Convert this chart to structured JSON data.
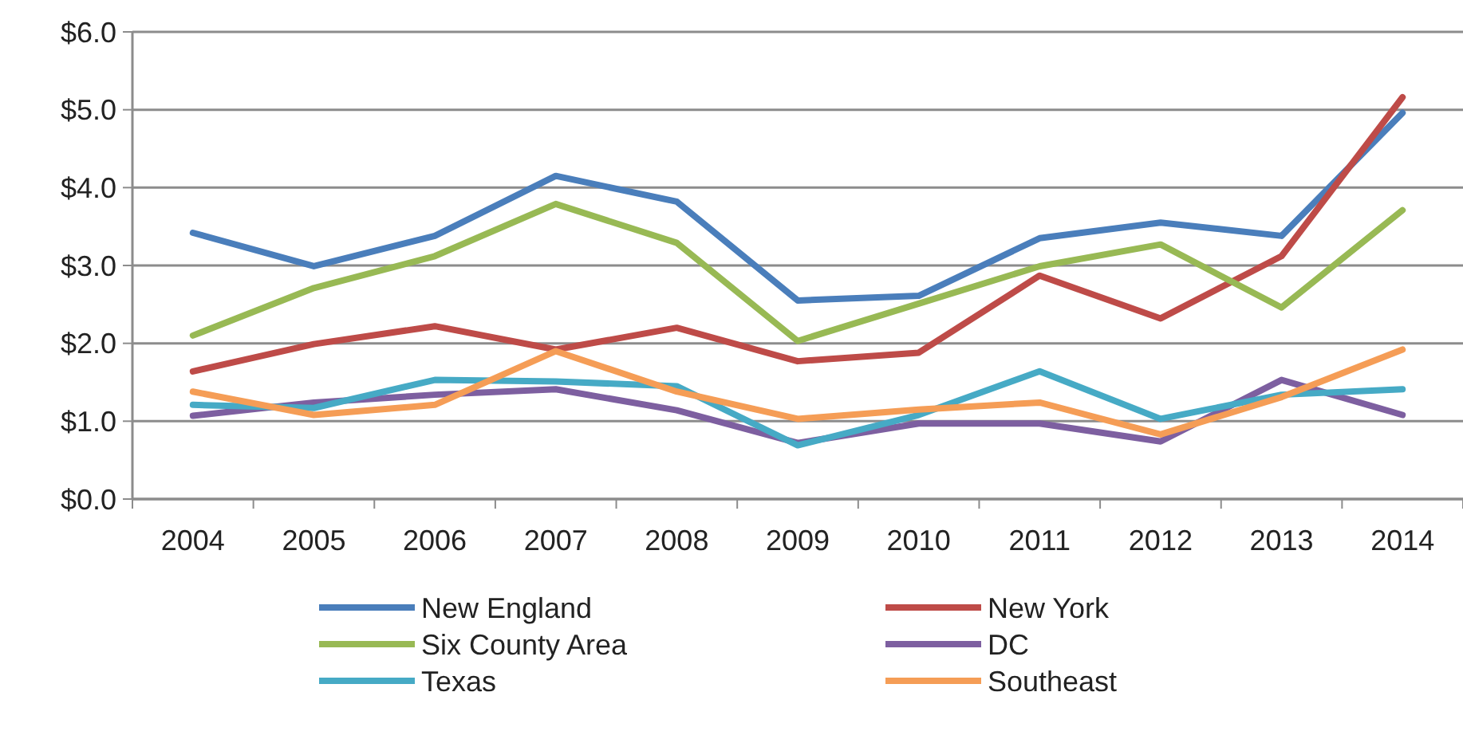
{
  "chart_data": {
    "type": "line",
    "categories": [
      "2004",
      "2005",
      "2006",
      "2007",
      "2008",
      "2009",
      "2010",
      "2011",
      "2012",
      "2013",
      "2014"
    ],
    "series": [
      {
        "name": "New England",
        "color": "#4a7ebb",
        "values": [
          3.42,
          2.99,
          3.38,
          4.15,
          3.82,
          2.55,
          2.61,
          3.35,
          3.55,
          3.38,
          4.96
        ]
      },
      {
        "name": "New York",
        "color": "#be4b48",
        "values": [
          1.64,
          1.99,
          2.22,
          1.92,
          2.2,
          1.77,
          1.88,
          2.87,
          2.32,
          3.12,
          5.16
        ]
      },
      {
        "name": "Six County Area",
        "color": "#98b954",
        "values": [
          2.1,
          2.71,
          3.12,
          3.79,
          3.29,
          2.03,
          2.51,
          2.99,
          3.27,
          2.46,
          3.71
        ]
      },
      {
        "name": "DC",
        "color": "#7d5fa0",
        "values": [
          1.07,
          1.24,
          1.34,
          1.41,
          1.14,
          0.72,
          0.97,
          0.97,
          0.74,
          1.53,
          1.08
        ]
      },
      {
        "name": "Texas",
        "color": "#46aac5",
        "values": [
          1.21,
          1.17,
          1.53,
          1.51,
          1.45,
          0.69,
          1.08,
          1.64,
          1.03,
          1.34,
          1.41
        ]
      },
      {
        "name": "Southeast",
        "color": "#f59d56",
        "values": [
          1.38,
          1.08,
          1.21,
          1.9,
          1.38,
          1.03,
          1.15,
          1.24,
          0.83,
          1.31,
          1.92
        ]
      }
    ],
    "ylim": [
      0,
      6
    ],
    "yticks": [
      {
        "value": 0,
        "label": "$0.0"
      },
      {
        "value": 1,
        "label": "$1.0"
      },
      {
        "value": 2,
        "label": "$2.0"
      },
      {
        "value": 3,
        "label": "$3.0"
      },
      {
        "value": 4,
        "label": "$4.0"
      },
      {
        "value": 5,
        "label": "$5.0"
      },
      {
        "value": 6,
        "label": "$6.0"
      }
    ],
    "grid": "y",
    "legend": "bottom",
    "marker": "none",
    "line_style": "solid"
  }
}
